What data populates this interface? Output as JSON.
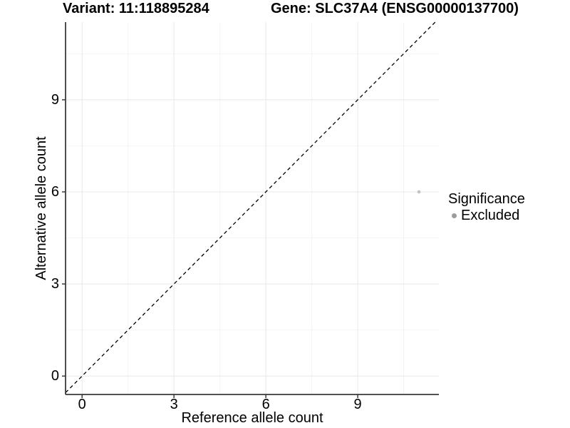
{
  "chart_data": {
    "type": "scatter",
    "titles": {
      "left": "Variant: 11:118895284",
      "right": "Gene: SLC37A4 (ENSG00000137700)"
    },
    "xlabel": "Reference allele count",
    "ylabel": "Alternative allele count",
    "xlim": [
      -0.54,
      11.65
    ],
    "ylim": [
      -0.6,
      11.53
    ],
    "x_ticks": [
      0,
      3,
      6,
      9
    ],
    "y_ticks": [
      0,
      3,
      6,
      9
    ],
    "x_minor_ticks": [
      1.5,
      4.5,
      7.5,
      10.5
    ],
    "y_minor_ticks": [
      1.5,
      4.5,
      7.5,
      10.5
    ],
    "grid": {
      "major_color": "#e8e8e8",
      "minor_color": "#f4f4f4",
      "on": true
    },
    "axis_color": "#3a3a3a",
    "identity_line": {
      "slope": 1,
      "intercept": 0,
      "dashed": true,
      "color": "#000000"
    },
    "series": [
      {
        "name": "Excluded",
        "color": "#c3c3c3",
        "points": [
          {
            "x": 11,
            "y": 6
          }
        ]
      }
    ],
    "legend": {
      "title": "Significance",
      "position": "right",
      "items": [
        {
          "label": "Excluded",
          "color": "#9c9c9c"
        }
      ]
    }
  }
}
